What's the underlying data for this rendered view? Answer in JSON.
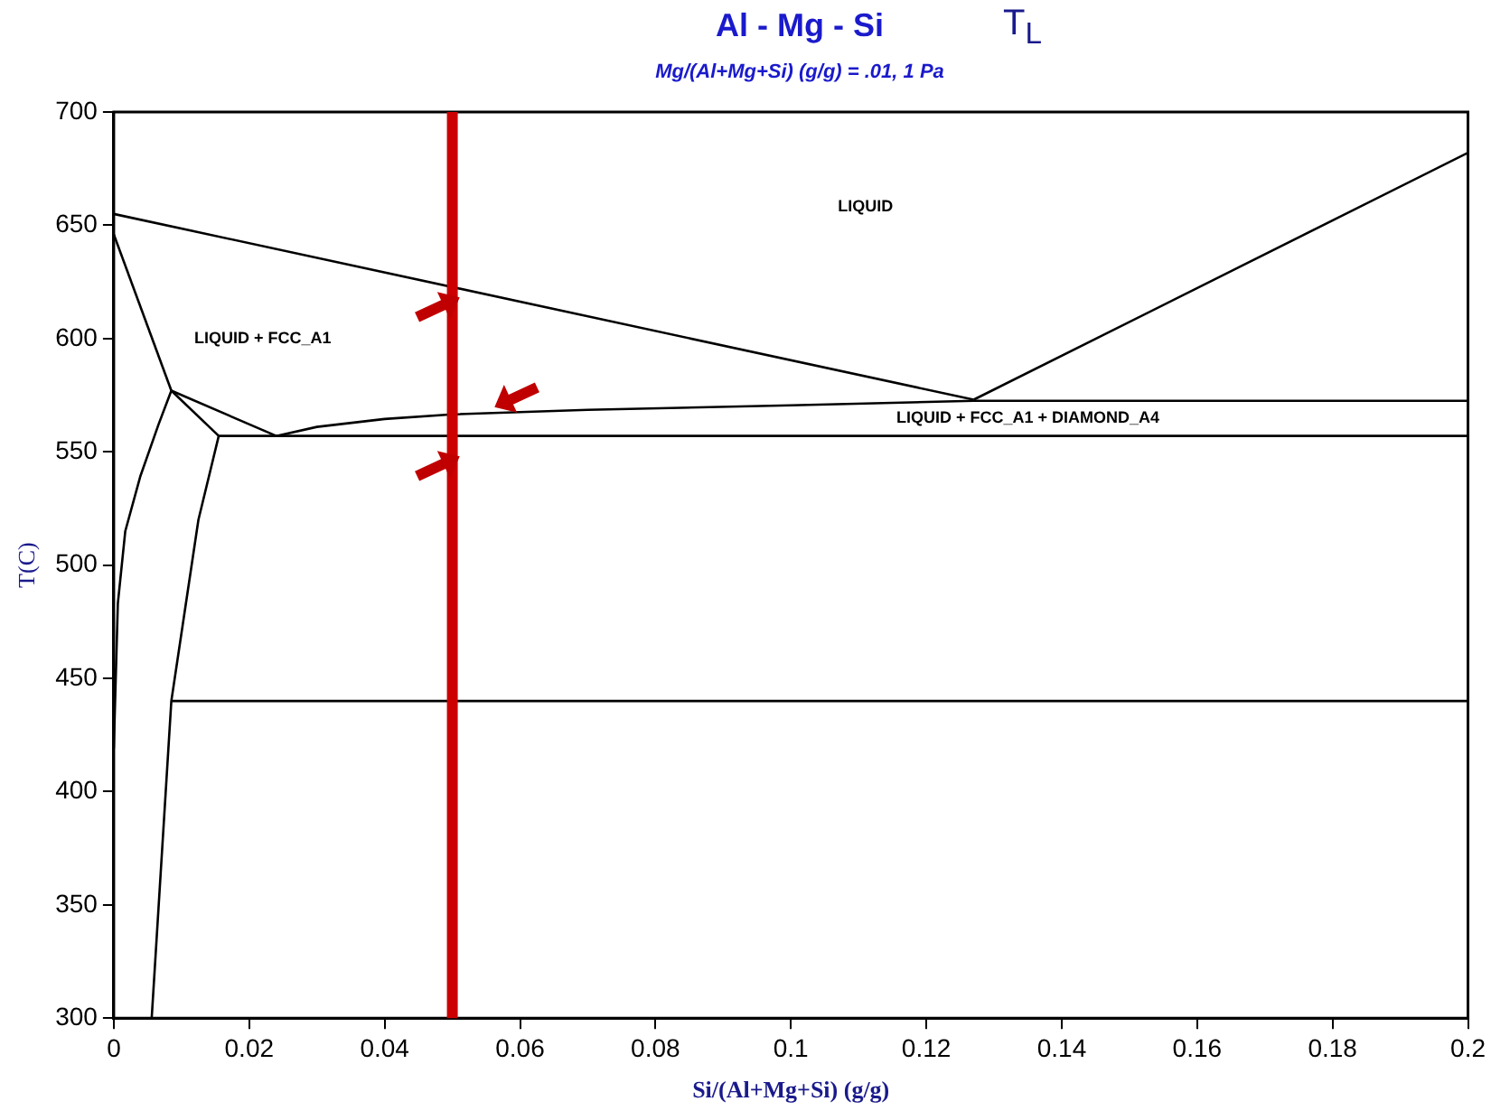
{
  "chart_data": {
    "type": "line",
    "title": "Al - Mg - Si",
    "subtitle": "Mg/(Al+Mg+Si) (g/g)  = .01,  1 Pa",
    "xlabel": "Si/(Al+Mg+Si) (g/g)",
    "ylabel": "T(C)",
    "xlim": [
      0,
      0.2
    ],
    "ylim": [
      300,
      700
    ],
    "xticks": [
      0,
      0.02,
      0.04,
      0.06,
      0.08,
      0.1,
      0.12,
      0.14,
      0.16,
      0.18,
      0.2
    ],
    "yticks": [
      300,
      350,
      400,
      450,
      500,
      550,
      600,
      650,
      700
    ],
    "grid": false,
    "legend": false,
    "marker": "none",
    "line_style": "solid",
    "series": [
      {
        "color": "#000000",
        "x": [
          0,
          0.127
        ],
        "values": [
          655,
          573
        ]
      },
      {
        "color": "#000000",
        "x": [
          0.127,
          0.2
        ],
        "values": [
          573,
          682
        ]
      },
      {
        "color": "#000000",
        "x": [
          0,
          0.0085
        ],
        "values": [
          646,
          577
        ]
      },
      {
        "color": "#000000",
        "x": [
          0.0085,
          0.0155
        ],
        "values": [
          577,
          557
        ]
      },
      {
        "color": "#000000",
        "x": [
          0.0085,
          0.024
        ],
        "values": [
          577,
          557
        ]
      },
      {
        "color": "#000000",
        "x": [
          0.024,
          0.03,
          0.04,
          0.05,
          0.07,
          0.1,
          0.127,
          0.2
        ],
        "values": [
          557,
          561,
          564.5,
          566.5,
          568.5,
          570.5,
          572.5,
          572.5
        ]
      },
      {
        "color": "#000000",
        "x": [
          0.0155,
          0.2
        ],
        "values": [
          557,
          557
        ]
      },
      {
        "color": "#000000",
        "x": [
          0.0085,
          0.0066,
          0.0039,
          0.0017,
          0.0006,
          0
        ],
        "values": [
          577,
          562,
          539,
          515,
          483,
          419
        ]
      },
      {
        "color": "#000000",
        "x": [
          0.0155,
          0.0125,
          0.0105,
          0.0085,
          0.0056
        ],
        "values": [
          557,
          520,
          480,
          440,
          300
        ]
      },
      {
        "color": "#000000",
        "x": [
          0.0085,
          0.2
        ],
        "values": [
          440,
          440
        ]
      }
    ],
    "ref_lines": [
      {
        "axis": "x",
        "value": 0.05,
        "color": "#cc0000"
      }
    ],
    "annotations": [
      "LIQUID",
      "LIQUID + FCC_A1",
      "LIQUID + FCC_A1 + DIAMOND_A4",
      "T$_{L}$"
    ]
  }
}
